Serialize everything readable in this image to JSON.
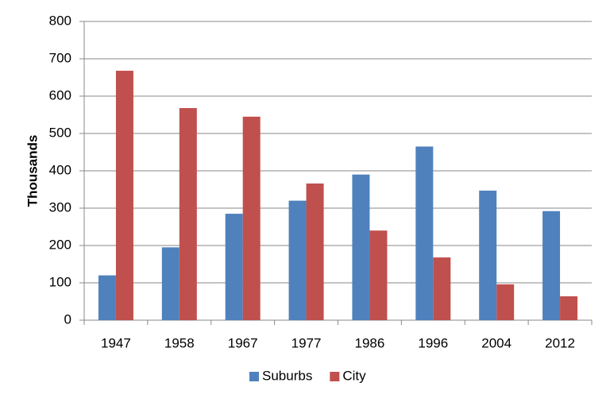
{
  "chart_data": {
    "type": "bar",
    "y_label": "Thousands",
    "categories": [
      "1947",
      "1958",
      "1967",
      "1977",
      "1986",
      "1996",
      "2004",
      "2012"
    ],
    "series": [
      {
        "name": "Suburbs",
        "color": "#4f81bd",
        "values": [
          120,
          195,
          285,
          320,
          390,
          465,
          347,
          292
        ]
      },
      {
        "name": "City",
        "color": "#c0504d",
        "values": [
          668,
          568,
          545,
          366,
          240,
          168,
          96,
          64
        ]
      }
    ],
    "ylim": [
      0,
      800
    ],
    "yticks": [
      0,
      100,
      200,
      300,
      400,
      500,
      600,
      700,
      800
    ],
    "grid": true,
    "legend": "bottom"
  }
}
